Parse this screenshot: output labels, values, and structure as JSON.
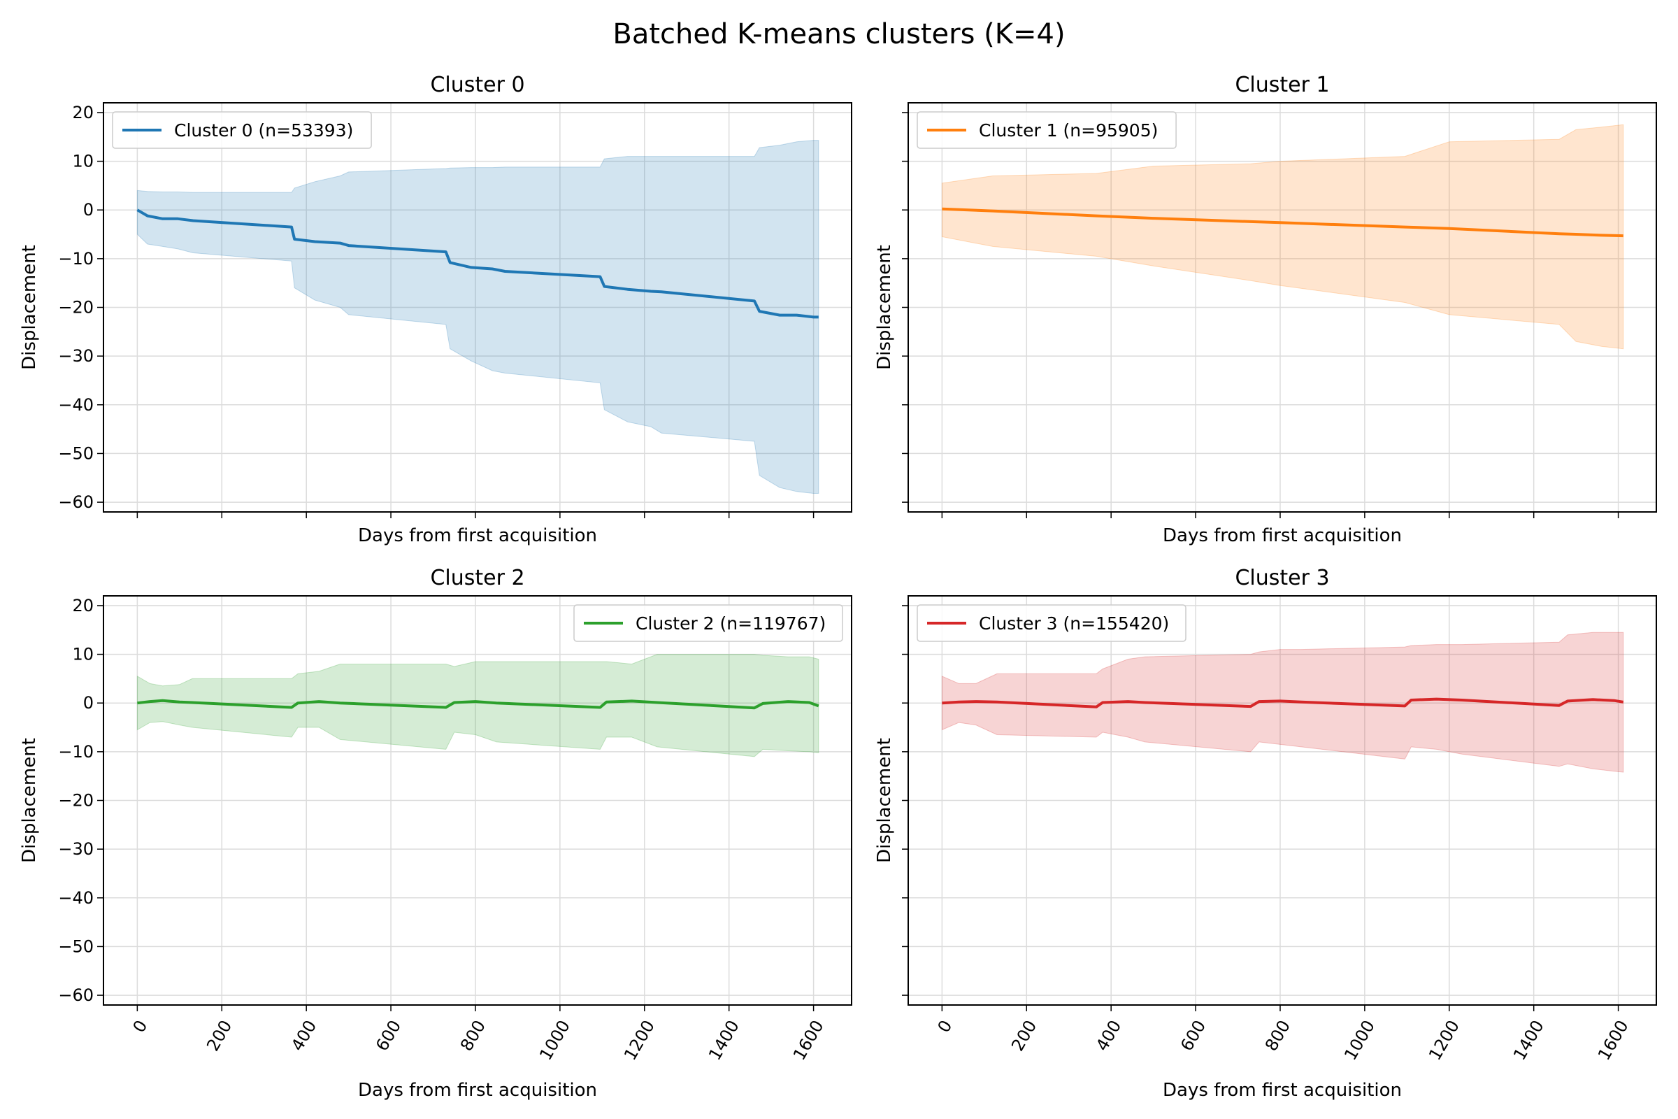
{
  "figure": {
    "title": "Batched K-means clusters (K=4)"
  },
  "chart_data": [
    {
      "type": "line",
      "title": "Cluster 0",
      "xlabel": "Days from first acquisition",
      "ylabel": "Displacement",
      "xlim": [
        -80,
        1690
      ],
      "ylim": [
        -62,
        22
      ],
      "xticks": [
        0,
        200,
        400,
        600,
        800,
        1000,
        1200,
        1400,
        1600
      ],
      "yticks": [
        20,
        10,
        0,
        -10,
        -20,
        -30,
        -40,
        -50,
        -60
      ],
      "show_x_ticklabels": false,
      "grid": true,
      "legend_position": "top-left",
      "series": [
        {
          "name": "Cluster 0 (n=53393)",
          "color": "#1f77b4",
          "fill_color": "#1f77b4",
          "x": [
            0,
            24,
            60,
            96,
            132,
            365,
            372,
            420,
            480,
            500,
            730,
            740,
            790,
            840,
            870,
            1095,
            1105,
            1160,
            1215,
            1240,
            1460,
            1472,
            1520,
            1560,
            1600,
            1612
          ],
          "y": [
            0,
            -1.2,
            -1.8,
            -1.8,
            -2.2,
            -3.5,
            -6.0,
            -6.5,
            -6.8,
            -7.3,
            -8.6,
            -10.8,
            -11.8,
            -12.1,
            -12.6,
            -13.7,
            -15.7,
            -16.3,
            -16.7,
            -16.8,
            -18.7,
            -20.8,
            -21.6,
            -21.6,
            -22.0,
            -22.0
          ],
          "upper": [
            4,
            3.8,
            3.7,
            3.7,
            3.6,
            3.6,
            4.5,
            5.8,
            7.0,
            7.8,
            8.5,
            8.6,
            8.7,
            8.7,
            8.8,
            8.8,
            10.5,
            11.0,
            11.0,
            11.0,
            11.0,
            12.8,
            13.3,
            14.0,
            14.3,
            14.3
          ],
          "lower": [
            -5,
            -7.0,
            -7.5,
            -8.0,
            -8.8,
            -10.5,
            -16.0,
            -18.5,
            -20.0,
            -21.5,
            -23.5,
            -28.5,
            -31.0,
            -33.0,
            -33.5,
            -35.5,
            -41.0,
            -43.5,
            -44.5,
            -45.8,
            -47.5,
            -54.5,
            -57.0,
            -57.8,
            -58.2,
            -58.2
          ]
        }
      ]
    },
    {
      "type": "line",
      "title": "Cluster 1",
      "xlabel": "Days from first acquisition",
      "ylabel": "Displacement",
      "xlim": [
        -80,
        1690
      ],
      "ylim": [
        -62,
        22
      ],
      "xticks": [
        0,
        200,
        400,
        600,
        800,
        1000,
        1200,
        1400,
        1600
      ],
      "yticks": [
        20,
        10,
        0,
        -10,
        -20,
        -30,
        -40,
        -50,
        -60
      ],
      "show_x_ticklabels": false,
      "show_y_ticklabels": false,
      "grid": true,
      "legend_position": "top-left",
      "series": [
        {
          "name": "Cluster 1 (n=95905)",
          "color": "#ff7f0e",
          "fill_color": "#ff7f0e",
          "x": [
            0,
            120,
            365,
            500,
            730,
            800,
            1095,
            1200,
            1460,
            1500,
            1560,
            1612
          ],
          "y": [
            0.2,
            -0.2,
            -1.2,
            -1.7,
            -2.4,
            -2.6,
            -3.5,
            -3.8,
            -4.9,
            -5.0,
            -5.2,
            -5.3
          ],
          "upper": [
            5.5,
            7.0,
            7.5,
            9.0,
            9.5,
            10.0,
            11.0,
            14.0,
            14.5,
            16.5,
            17.0,
            17.5
          ],
          "lower": [
            -5.5,
            -7.5,
            -9.5,
            -11.5,
            -14.5,
            -15.5,
            -19.0,
            -21.5,
            -23.5,
            -27.0,
            -28.0,
            -28.5
          ]
        }
      ]
    },
    {
      "type": "line",
      "title": "Cluster 2",
      "xlabel": "Days from first acquisition",
      "ylabel": "Displacement",
      "xlim": [
        -80,
        1690
      ],
      "ylim": [
        -62,
        22
      ],
      "xticks": [
        0,
        200,
        400,
        600,
        800,
        1000,
        1200,
        1400,
        1600
      ],
      "yticks": [
        20,
        10,
        0,
        -10,
        -20,
        -30,
        -40,
        -50,
        -60
      ],
      "show_x_ticklabels": true,
      "grid": true,
      "legend_position": "top-right",
      "series": [
        {
          "name": "Cluster 2 (n=119767)",
          "color": "#2ca02c",
          "fill_color": "#2ca02c",
          "x": [
            0,
            30,
            60,
            100,
            130,
            365,
            380,
            430,
            480,
            730,
            750,
            800,
            850,
            1095,
            1110,
            1170,
            1230,
            1460,
            1480,
            1540,
            1590,
            1612
          ],
          "y": [
            0,
            0.3,
            0.5,
            0.2,
            0.1,
            -0.9,
            0.0,
            0.3,
            0.0,
            -0.9,
            0.1,
            0.3,
            0.0,
            -0.9,
            0.2,
            0.4,
            0.1,
            -1.0,
            -0.1,
            0.3,
            0.1,
            -0.6
          ],
          "upper": [
            5.5,
            4.0,
            3.5,
            3.8,
            5.0,
            5.0,
            6.0,
            6.5,
            8.0,
            8.0,
            7.5,
            8.5,
            8.5,
            8.5,
            8.5,
            8.0,
            10.0,
            10.0,
            9.8,
            9.5,
            9.5,
            9.0
          ],
          "lower": [
            -5.5,
            -4.0,
            -3.8,
            -4.5,
            -5.0,
            -7.0,
            -5.0,
            -5.0,
            -7.5,
            -9.5,
            -6.0,
            -6.5,
            -8.0,
            -9.5,
            -7.0,
            -7.0,
            -9.0,
            -11.0,
            -9.5,
            -9.8,
            -10.0,
            -10.2
          ]
        }
      ]
    },
    {
      "type": "line",
      "title": "Cluster 3",
      "xlabel": "Days from first acquisition",
      "ylabel": "Displacement",
      "xlim": [
        -80,
        1690
      ],
      "ylim": [
        -62,
        22
      ],
      "xticks": [
        0,
        200,
        400,
        600,
        800,
        1000,
        1200,
        1400,
        1600
      ],
      "yticks": [
        20,
        10,
        0,
        -10,
        -20,
        -30,
        -40,
        -50,
        -60
      ],
      "show_x_ticklabels": true,
      "show_y_ticklabels": false,
      "grid": true,
      "legend_position": "top-left",
      "series": [
        {
          "name": "Cluster 3 (n=155420)",
          "color": "#d62728",
          "fill_color": "#d62728",
          "x": [
            0,
            40,
            80,
            130,
            365,
            380,
            440,
            480,
            730,
            750,
            800,
            850,
            1095,
            1110,
            1170,
            1230,
            1460,
            1480,
            1540,
            1590,
            1612
          ],
          "y": [
            0,
            0.2,
            0.3,
            0.2,
            -0.8,
            0.1,
            0.3,
            0.1,
            -0.7,
            0.3,
            0.4,
            0.2,
            -0.6,
            0.6,
            0.8,
            0.6,
            -0.5,
            0.4,
            0.7,
            0.5,
            0.2
          ],
          "upper": [
            5.5,
            4.0,
            4.0,
            6.0,
            6.0,
            7.0,
            9.0,
            9.5,
            10.0,
            10.5,
            11.0,
            11.0,
            11.5,
            11.8,
            12.0,
            12.0,
            12.5,
            14.0,
            14.5,
            14.5,
            14.5
          ],
          "lower": [
            -5.5,
            -4.0,
            -4.5,
            -6.5,
            -7.0,
            -6.0,
            -7.0,
            -8.0,
            -10.0,
            -8.0,
            -8.5,
            -9.0,
            -11.5,
            -9.0,
            -9.5,
            -10.5,
            -13.0,
            -12.5,
            -13.5,
            -14.0,
            -14.2
          ]
        }
      ]
    }
  ]
}
